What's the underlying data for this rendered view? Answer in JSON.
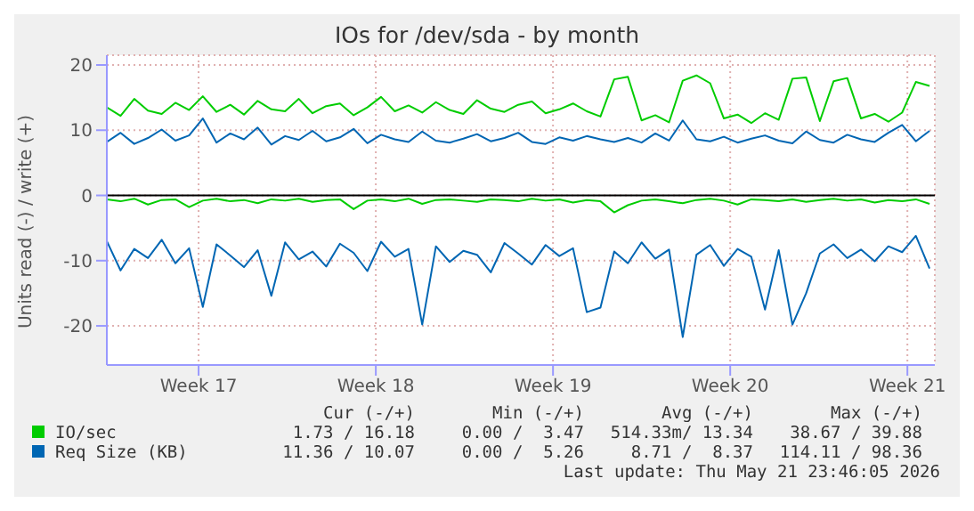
{
  "chart_data": {
    "type": "line",
    "title": "IOs for /dev/sda - by month",
    "ylabel": "Units read (-) / write (+)",
    "x": [
      "2026-04-19T21:00",
      "2026-04-20T10:00",
      "2026-04-20T23:00",
      "2026-04-21T12:00",
      "2026-04-22T01:00",
      "2026-04-22T14:00",
      "2026-04-23T03:00",
      "2026-04-23T16:00",
      "2026-04-24T05:00",
      "2026-04-24T18:00",
      "2026-04-25T07:00",
      "2026-04-25T20:00",
      "2026-04-26T09:00",
      "2026-04-26T22:00",
      "2026-04-27T11:00",
      "2026-04-28T00:00",
      "2026-04-28T13:00",
      "2026-04-29T02:00",
      "2026-04-29T15:00",
      "2026-04-30T04:00",
      "2026-04-30T17:00",
      "2026-05-01T06:00",
      "2026-05-01T19:00",
      "2026-05-02T08:00",
      "2026-05-02T21:00",
      "2026-05-03T10:00",
      "2026-05-03T23:00",
      "2026-05-04T12:00",
      "2026-05-05T01:00",
      "2026-05-05T14:00",
      "2026-05-06T03:00",
      "2026-05-06T16:00",
      "2026-05-07T05:00",
      "2026-05-07T18:00",
      "2026-05-08T07:00",
      "2026-05-08T20:00",
      "2026-05-09T09:00",
      "2026-05-09T22:00",
      "2026-05-10T11:00",
      "2026-05-11T00:00",
      "2026-05-11T13:00",
      "2026-05-12T02:00",
      "2026-05-12T15:00",
      "2026-05-13T04:00",
      "2026-05-13T17:00",
      "2026-05-14T06:00",
      "2026-05-14T19:00",
      "2026-05-15T08:00",
      "2026-05-15T21:00",
      "2026-05-16T10:00",
      "2026-05-16T23:00",
      "2026-05-17T12:00",
      "2026-05-18T01:00",
      "2026-05-18T14:00",
      "2026-05-19T03:00",
      "2026-05-19T16:00",
      "2026-05-20T05:00",
      "2026-05-20T18:00",
      "2026-05-21T07:00",
      "2026-05-21T20:00",
      "2026-05-22T09:00"
    ],
    "series": [
      {
        "name": "IO/sec",
        "color": "#00cc00",
        "values": [
          13.5,
          12.2,
          14.8,
          13,
          12.5,
          14.2,
          13.1,
          15.2,
          12.8,
          13.9,
          12.4,
          14.5,
          13.2,
          12.9,
          14.8,
          12.6,
          13.7,
          14.1,
          12.3,
          13.5,
          15.1,
          12.9,
          13.8,
          12.7,
          14.3,
          13.1,
          12.5,
          14.6,
          13.3,
          12.8,
          13.9,
          14.4,
          12.6,
          13.2,
          14.1,
          12.9,
          12.1,
          17.8,
          18.2,
          11.5,
          12.3,
          11.2,
          17.6,
          18.4,
          17.2,
          11.8,
          12.4,
          11.1,
          12.6,
          11.6,
          17.9,
          18.1,
          11.4,
          17.5,
          18,
          11.8,
          12.5,
          11.3,
          12.7,
          17.4,
          16.8
        ]
      },
      {
        "color": "#00cc00",
        "values": [
          -0.6,
          -0.9,
          -0.5,
          -1.4,
          -0.7,
          -0.6,
          -1.8,
          -0.8,
          -0.5,
          -0.9,
          -0.7,
          -1.2,
          -0.6,
          -0.8,
          -0.5,
          -1.0,
          -0.7,
          -0.6,
          -2.1,
          -0.8,
          -0.6,
          -0.9,
          -0.5,
          -1.3,
          -0.7,
          -0.6,
          -0.8,
          -1.0,
          -0.6,
          -0.7,
          -0.9,
          -0.5,
          -0.8,
          -0.6,
          -1.1,
          -0.7,
          -0.9,
          -2.6,
          -1.5,
          -0.8,
          -0.6,
          -0.9,
          -1.2,
          -0.7,
          -0.5,
          -0.8,
          -1.4,
          -0.6,
          -0.7,
          -0.9,
          -0.6,
          -1.0,
          -0.7,
          -0.5,
          -0.8,
          -0.6,
          -1.1,
          -0.7,
          -0.9,
          -0.6,
          -1.3
        ]
      },
      {
        "name": "Req Size (KB)",
        "color": "#0066b3",
        "values": [
          8.2,
          9.6,
          7.9,
          8.8,
          10.1,
          8.4,
          9.2,
          11.8,
          8.1,
          9.5,
          8.6,
          10.4,
          7.8,
          9.1,
          8.5,
          9.9,
          8.3,
          8.9,
          10.2,
          8,
          9.3,
          8.6,
          8.2,
          9.8,
          8.4,
          8.1,
          8.7,
          9.4,
          8.3,
          8.8,
          9.6,
          8.2,
          7.9,
          8.9,
          8.4,
          9.1,
          8.6,
          8.2,
          8.8,
          8.1,
          9.5,
          8.4,
          11.5,
          8.6,
          8.3,
          9,
          8.1,
          8.7,
          9.2,
          8.4,
          8,
          9.8,
          8.5,
          8.1,
          9.3,
          8.6,
          8.2,
          9.6,
          10.8,
          8.3,
          9.9
        ]
      },
      {
        "color": "#0066b3",
        "values": [
          -7,
          -11.5,
          -8.2,
          -9.6,
          -6.8,
          -10.4,
          -8.1,
          -17.1,
          -7.5,
          -9.2,
          -11,
          -8.4,
          -15.4,
          -7.2,
          -9.8,
          -8.6,
          -10.9,
          -7.4,
          -8.8,
          -11.6,
          -7.1,
          -9.4,
          -8.2,
          -19.8,
          -7.8,
          -10.2,
          -8.5,
          -9.1,
          -11.8,
          -7.3,
          -8.9,
          -10.6,
          -7.6,
          -9.3,
          -8.1,
          -17.9,
          -17.2,
          -8.6,
          -10.4,
          -7.2,
          -9.7,
          -8.3,
          -21.7,
          -9.1,
          -7.6,
          -10.8,
          -8.2,
          -9.4,
          -17.5,
          -8.4,
          -19.8,
          -15,
          -8.9,
          -7.5,
          -9.6,
          -8.3,
          -10.1,
          -7.8,
          -8.7,
          -6.2,
          -11.2
        ]
      }
    ],
    "xlim": [
      "2026-04-19T21:00",
      "2026-05-22T14:00"
    ],
    "xticks": [
      {
        "value": "2026-04-23T12:00",
        "label": "Week 17"
      },
      {
        "value": "2026-04-30T12:00",
        "label": "Week 18"
      },
      {
        "value": "2026-05-07T12:00",
        "label": "Week 19"
      },
      {
        "value": "2026-05-14T12:00",
        "label": "Week 20"
      },
      {
        "value": "2026-05-21T12:00",
        "label": "Week 21"
      }
    ],
    "ylim": [
      -26,
      21.5
    ],
    "yticks": [
      -20,
      -10,
      0,
      10,
      20
    ],
    "ref_lines": [
      {
        "axis": "y",
        "value": 0,
        "color": "#000000"
      }
    ],
    "grid": true,
    "legend": "bottom",
    "marker": "none",
    "line_style": "solid",
    "annotations": [
      "Cur (-/+)",
      "Min (-/+)",
      "Avg (-/+)",
      "Max (-/+)",
      "1.73 / 16.18",
      "0.00 /  3.47",
      "514.33m/ 13.34",
      "38.67 / 39.88",
      "11.36 / 10.07",
      "0.00 /  5.26",
      "8.71 /  8.37",
      "114.11 / 98.36",
      "Last update: Thu May 21 23:46:05 2026"
    ]
  }
}
